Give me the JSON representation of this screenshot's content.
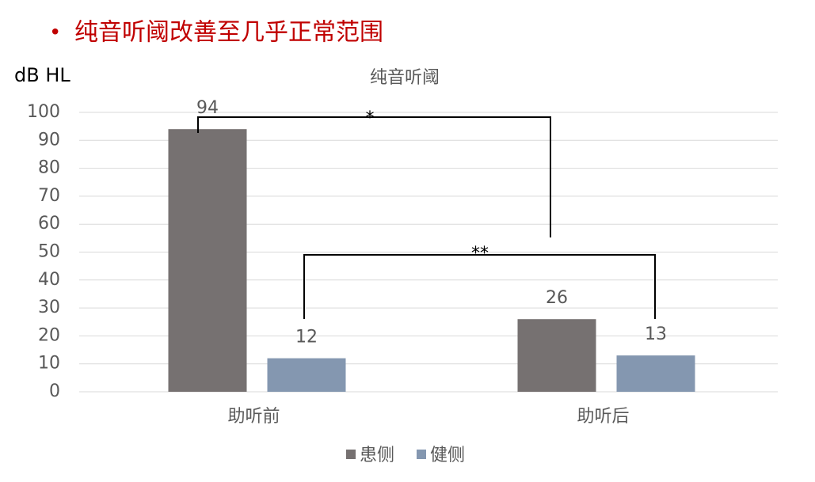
{
  "chart_data": {
    "type": "bar",
    "headline": "纯音听阈改善至几乎正常范围",
    "title": "纯音听阈",
    "ylabel": "dB HL",
    "categories": [
      "助听前",
      "助听后"
    ],
    "series": [
      {
        "name": "患侧",
        "color": "#767171",
        "values": [
          94,
          26
        ]
      },
      {
        "name": "健侧",
        "color": "#8497b0",
        "values": [
          12,
          13
        ]
      }
    ],
    "ylim": [
      0,
      100
    ],
    "yticks": [
      0,
      10,
      20,
      30,
      40,
      50,
      60,
      70,
      80,
      90,
      100
    ],
    "grid": true,
    "annotations": [
      "*",
      "**"
    ]
  }
}
